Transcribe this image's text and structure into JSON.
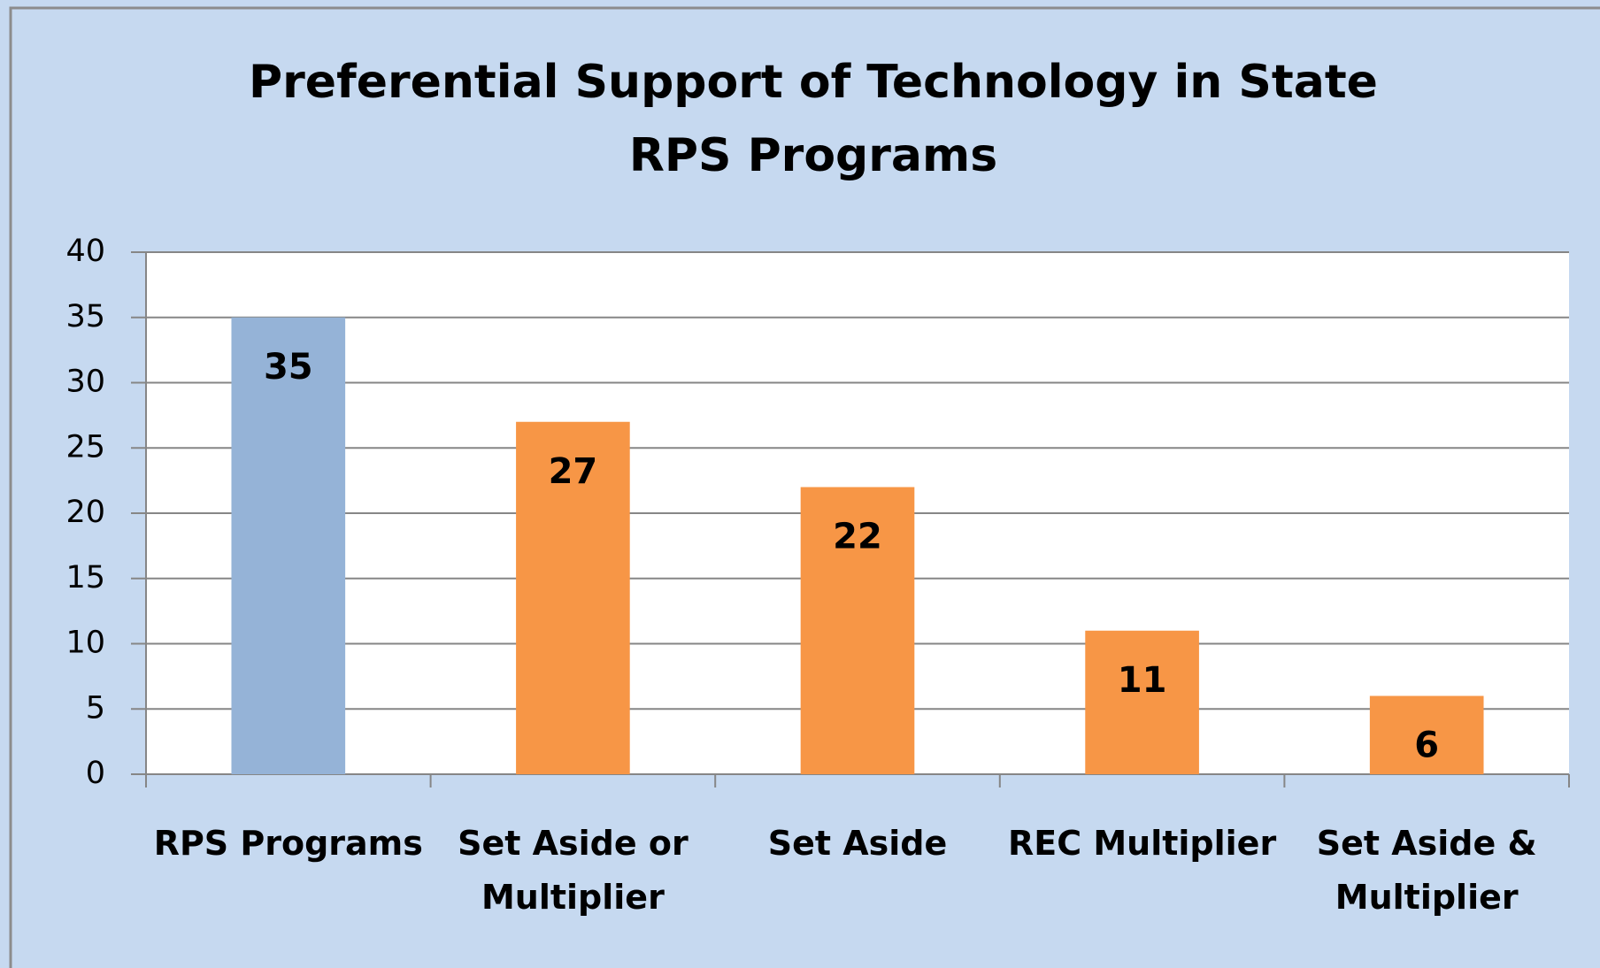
{
  "chart_data": {
    "type": "bar",
    "title": "Preferential Support of Technology in State RPS Programs",
    "categories": [
      "RPS Programs",
      "Set Aside or Multiplier",
      "Set Aside",
      "REC Multiplier",
      "Set Aside & Multiplier"
    ],
    "values": [
      35,
      27,
      22,
      11,
      6
    ],
    "colors": [
      "#95b3d7",
      "#f79646",
      "#f79646",
      "#f79646",
      "#f79646"
    ],
    "ylim": [
      0,
      40
    ],
    "yticks": [
      0,
      5,
      10,
      15,
      20,
      25,
      30,
      35,
      40
    ],
    "grid": true
  }
}
